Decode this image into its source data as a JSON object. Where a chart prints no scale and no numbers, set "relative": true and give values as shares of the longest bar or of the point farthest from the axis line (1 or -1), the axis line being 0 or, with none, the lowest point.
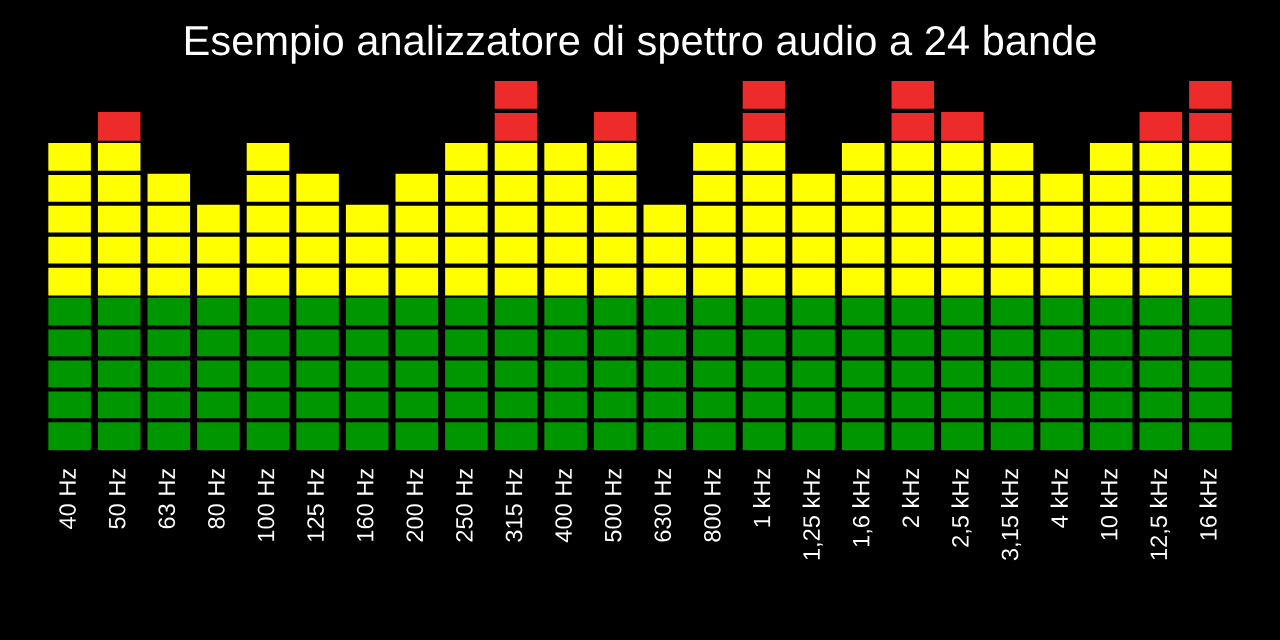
{
  "chart_data": {
    "type": "bar",
    "title": "Esempio analizzatore di spettro audio a 24 bande",
    "categories": [
      "40 Hz",
      "50 Hz",
      "63 Hz",
      "80 Hz",
      "100 Hz",
      "125 Hz",
      "160 Hz",
      "200 Hz",
      "250 Hz",
      "315 Hz",
      "400 Hz",
      "500 Hz",
      "630 Hz",
      "800 Hz",
      "1 kHz",
      "1,25 kHz",
      "1,6 kHz",
      "2 kHz",
      "2,5 kHz",
      "3,15 kHz",
      "4 kHz",
      "10 kHz",
      "12,5 kHz",
      "16 kHz"
    ],
    "stacked": true,
    "relative": true,
    "series": [
      {
        "color": "#009600",
        "values": [
          0.4167,
          0.4167,
          0.4167,
          0.4167,
          0.4167,
          0.4167,
          0.4167,
          0.4167,
          0.4167,
          0.4167,
          0.4167,
          0.4167,
          0.4167,
          0.4167,
          0.4167,
          0.4167,
          0.4167,
          0.4167,
          0.4167,
          0.4167,
          0.4167,
          0.4167,
          0.4167,
          0.4167
        ]
      },
      {
        "color": "#ffff00",
        "values": [
          0.4167,
          0.4167,
          0.3333,
          0.25,
          0.4167,
          0.3333,
          0.25,
          0.3333,
          0.4167,
          0.4167,
          0.4167,
          0.4167,
          0.25,
          0.4167,
          0.4167,
          0.3333,
          0.4167,
          0.4167,
          0.4167,
          0.4167,
          0.3333,
          0.4167,
          0.4167,
          0.4167
        ]
      },
      {
        "color": "#ee2b2b",
        "values": [
          null,
          0.0833,
          null,
          null,
          null,
          null,
          null,
          null,
          null,
          0.1666,
          null,
          0.0833,
          null,
          null,
          0.1666,
          null,
          null,
          0.1666,
          0.0833,
          null,
          null,
          null,
          0.0833,
          0.1666
        ]
      }
    ]
  }
}
